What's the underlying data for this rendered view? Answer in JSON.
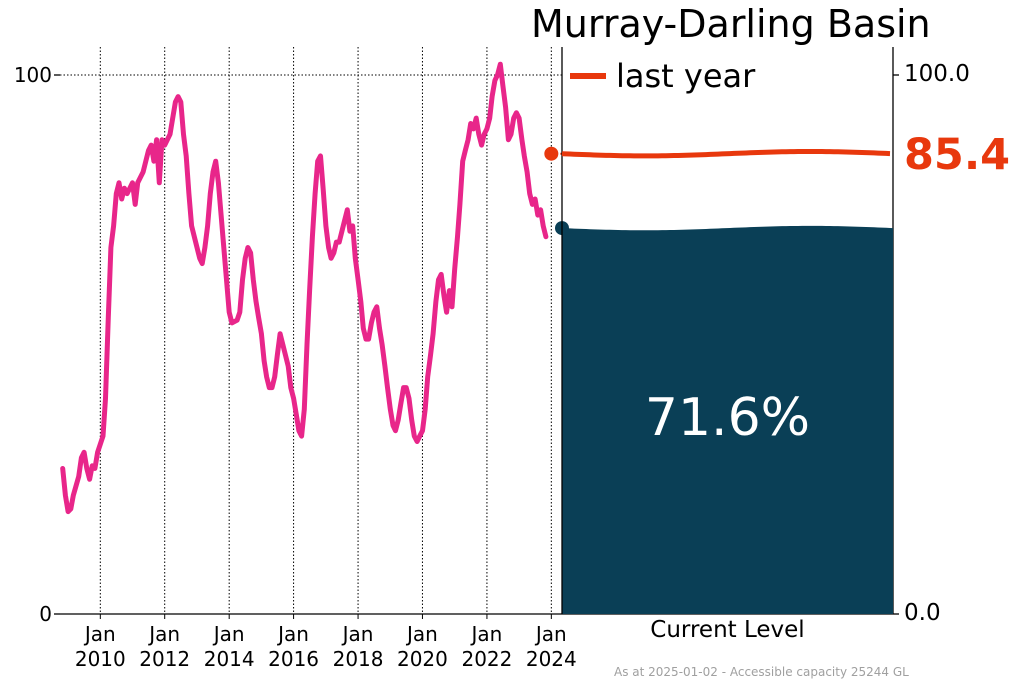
{
  "title": "Murray-Darling Basin",
  "legend": {
    "label": "last year",
    "color": "#e8380d"
  },
  "footer": "As at 2025-01-02 - Accessible capacity 25244 GL",
  "current": {
    "label": "Current Level",
    "value_text": "71.6%",
    "value": 71.6,
    "fill_color": "#0a3f56"
  },
  "last_year": {
    "value_text": "85.4",
    "value": 85.4
  },
  "left_axis": {
    "ticks": [
      "0",
      "100"
    ],
    "ylim": [
      0,
      100
    ]
  },
  "right_axis": {
    "ticks": [
      "0.0",
      "100.0"
    ]
  },
  "x_ticks": [
    {
      "line1": "Jan",
      "line2": "2010"
    },
    {
      "line1": "Jan",
      "line2": "2012"
    },
    {
      "line1": "Jan",
      "line2": "2014"
    },
    {
      "line1": "Jan",
      "line2": "2016"
    },
    {
      "line1": "Jan",
      "line2": "2018"
    },
    {
      "line1": "Jan",
      "line2": "2020"
    },
    {
      "line1": "Jan",
      "line2": "2022"
    },
    {
      "line1": "Jan",
      "line2": "2024"
    }
  ],
  "chart_data": {
    "type": "line",
    "title": "Murray-Darling Basin",
    "xlabel": "",
    "ylabel": "",
    "ylim": [
      0,
      100
    ],
    "grid": "vertical dotted at January of even years; horizontal dotted at 100",
    "series": [
      {
        "color": "#e8268a",
        "points": [
          [
            "2008-11-01",
            27
          ],
          [
            "2008-12-01",
            22
          ],
          [
            "2009-01-01",
            19
          ],
          [
            "2009-02-01",
            19.5
          ],
          [
            "2009-03-01",
            22
          ],
          [
            "2009-05-01",
            25.5
          ],
          [
            "2009-06-01",
            29
          ],
          [
            "2009-07-01",
            30
          ],
          [
            "2009-08-01",
            27
          ],
          [
            "2009-09-01",
            25
          ],
          [
            "2009-10-01",
            27.5
          ],
          [
            "2009-11-01",
            27
          ],
          [
            "2009-12-01",
            30
          ],
          [
            "2010-02-01",
            33
          ],
          [
            "2010-03-01",
            40
          ],
          [
            "2010-04-01",
            55
          ],
          [
            "2010-05-01",
            68
          ],
          [
            "2010-06-01",
            72
          ],
          [
            "2010-07-01",
            78
          ],
          [
            "2010-08-01",
            80
          ],
          [
            "2010-09-01",
            77
          ],
          [
            "2010-10-01",
            79
          ],
          [
            "2010-11-01",
            78
          ],
          [
            "2010-12-01",
            79
          ],
          [
            "2011-01-01",
            80
          ],
          [
            "2011-02-01",
            76
          ],
          [
            "2011-03-01",
            80
          ],
          [
            "2011-05-01",
            82
          ],
          [
            "2011-06-01",
            84
          ],
          [
            "2011-07-01",
            86
          ],
          [
            "2011-08-01",
            87
          ],
          [
            "2011-09-01",
            84
          ],
          [
            "2011-10-01",
            88
          ],
          [
            "2011-11-01",
            80
          ],
          [
            "2011-12-01",
            88
          ],
          [
            "2012-01-01",
            87
          ],
          [
            "2012-03-01",
            89
          ],
          [
            "2012-05-01",
            95
          ],
          [
            "2012-06-01",
            96
          ],
          [
            "2012-07-01",
            95
          ],
          [
            "2012-08-01",
            89
          ],
          [
            "2012-09-01",
            85
          ],
          [
            "2012-10-01",
            78
          ],
          [
            "2012-11-01",
            72
          ],
          [
            "2013-01-01",
            68
          ],
          [
            "2013-02-01",
            66
          ],
          [
            "2013-03-01",
            65
          ],
          [
            "2013-04-01",
            68
          ],
          [
            "2013-05-01",
            72
          ],
          [
            "2013-06-01",
            78
          ],
          [
            "2013-07-01",
            82
          ],
          [
            "2013-08-01",
            84
          ],
          [
            "2013-09-01",
            80
          ],
          [
            "2013-10-01",
            74
          ],
          [
            "2013-11-01",
            68
          ],
          [
            "2013-12-01",
            62
          ],
          [
            "2014-01-01",
            56
          ],
          [
            "2014-02-01",
            54
          ],
          [
            "2014-04-01",
            54.5
          ],
          [
            "2014-05-01",
            56
          ],
          [
            "2014-06-01",
            62
          ],
          [
            "2014-07-01",
            66
          ],
          [
            "2014-08-01",
            68
          ],
          [
            "2014-09-01",
            67
          ],
          [
            "2014-10-01",
            62
          ],
          [
            "2014-11-01",
            58
          ],
          [
            "2014-12-01",
            55
          ],
          [
            "2015-01-01",
            52
          ],
          [
            "2015-02-01",
            47
          ],
          [
            "2015-03-01",
            44
          ],
          [
            "2015-04-01",
            42
          ],
          [
            "2015-05-01",
            42
          ],
          [
            "2015-06-01",
            44
          ],
          [
            "2015-07-01",
            48
          ],
          [
            "2015-08-01",
            52
          ],
          [
            "2015-09-01",
            50
          ],
          [
            "2015-10-01",
            48
          ],
          [
            "2015-11-01",
            46
          ],
          [
            "2015-12-01",
            42
          ],
          [
            "2016-01-01",
            40
          ],
          [
            "2016-02-01",
            37
          ],
          [
            "2016-03-01",
            34
          ],
          [
            "2016-04-01",
            33
          ],
          [
            "2016-05-01",
            38
          ],
          [
            "2016-06-01",
            50
          ],
          [
            "2016-07-01",
            60
          ],
          [
            "2016-08-01",
            70
          ],
          [
            "2016-09-01",
            78
          ],
          [
            "2016-10-01",
            84
          ],
          [
            "2016-11-01",
            85
          ],
          [
            "2016-12-01",
            79
          ],
          [
            "2017-01-01",
            72
          ],
          [
            "2017-02-01",
            68
          ],
          [
            "2017-03-01",
            66
          ],
          [
            "2017-04-01",
            67
          ],
          [
            "2017-05-01",
            69
          ],
          [
            "2017-06-01",
            69
          ],
          [
            "2017-08-01",
            73
          ],
          [
            "2017-09-01",
            75
          ],
          [
            "2017-10-01",
            71
          ],
          [
            "2017-11-01",
            72
          ],
          [
            "2017-12-01",
            66
          ],
          [
            "2018-01-01",
            62
          ],
          [
            "2018-02-01",
            58
          ],
          [
            "2018-03-01",
            53
          ],
          [
            "2018-04-01",
            51
          ],
          [
            "2018-05-01",
            51
          ],
          [
            "2018-06-01",
            54
          ],
          [
            "2018-07-01",
            56
          ],
          [
            "2018-08-01",
            57
          ],
          [
            "2018-09-01",
            53
          ],
          [
            "2018-10-01",
            50
          ],
          [
            "2018-11-01",
            46
          ],
          [
            "2018-12-01",
            42
          ],
          [
            "2019-01-01",
            38
          ],
          [
            "2019-02-01",
            35
          ],
          [
            "2019-03-01",
            34
          ],
          [
            "2019-04-01",
            36
          ],
          [
            "2019-05-01",
            39
          ],
          [
            "2019-06-01",
            42
          ],
          [
            "2019-07-01",
            42
          ],
          [
            "2019-08-01",
            40
          ],
          [
            "2019-09-01",
            36
          ],
          [
            "2019-10-01",
            33
          ],
          [
            "2019-11-01",
            32
          ],
          [
            "2019-12-01",
            33
          ],
          [
            "2020-01-01",
            34
          ],
          [
            "2020-02-01",
            38
          ],
          [
            "2020-03-01",
            44
          ],
          [
            "2020-04-01",
            48
          ],
          [
            "2020-05-01",
            52
          ],
          [
            "2020-06-01",
            58
          ],
          [
            "2020-07-01",
            62
          ],
          [
            "2020-08-01",
            63
          ],
          [
            "2020-09-01",
            59
          ],
          [
            "2020-10-01",
            56
          ],
          [
            "2020-11-01",
            60
          ],
          [
            "2020-12-01",
            57
          ],
          [
            "2021-01-01",
            64
          ],
          [
            "2021-02-01",
            70
          ],
          [
            "2021-03-01",
            76
          ],
          [
            "2021-04-01",
            84
          ],
          [
            "2021-05-01",
            86
          ],
          [
            "2021-06-01",
            88
          ],
          [
            "2021-07-01",
            91
          ],
          [
            "2021-08-01",
            90
          ],
          [
            "2021-09-01",
            92
          ],
          [
            "2021-10-01",
            89
          ],
          [
            "2021-11-01",
            87
          ],
          [
            "2021-12-01",
            89
          ],
          [
            "2022-01-01",
            90
          ],
          [
            "2022-02-01",
            92
          ],
          [
            "2022-03-01",
            96
          ],
          [
            "2022-04-01",
            99
          ],
          [
            "2022-05-01",
            100
          ],
          [
            "2022-06-01",
            102
          ],
          [
            "2022-07-01",
            98
          ],
          [
            "2022-08-01",
            94
          ],
          [
            "2022-09-01",
            88
          ],
          [
            "2022-10-01",
            89
          ],
          [
            "2022-11-01",
            92
          ],
          [
            "2022-12-01",
            93
          ],
          [
            "2023-01-01",
            92
          ],
          [
            "2023-02-01",
            88
          ],
          [
            "2023-03-01",
            85
          ],
          [
            "2023-04-01",
            82
          ],
          [
            "2023-05-01",
            78
          ],
          [
            "2023-06-01",
            76
          ],
          [
            "2023-07-01",
            77
          ],
          [
            "2023-08-01",
            74
          ],
          [
            "2023-09-01",
            75
          ],
          [
            "2023-10-01",
            72
          ],
          [
            "2023-11-01",
            70
          ]
        ]
      },
      {
        "name": "last year",
        "color": "#e8380d",
        "value": 85.4
      },
      {
        "name": "Current Level",
        "color": "#0a3f56",
        "value": 71.6
      }
    ]
  }
}
